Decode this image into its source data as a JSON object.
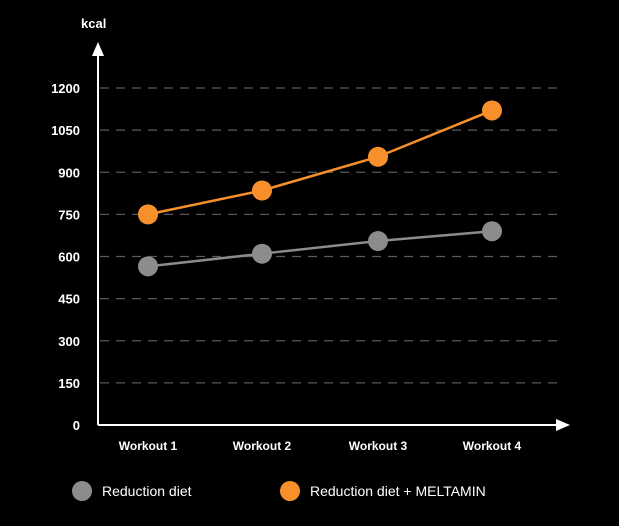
{
  "chart_data": {
    "type": "line",
    "title": "",
    "xlabel": "",
    "ylabel": "kcal",
    "ylim": [
      0,
      1200
    ],
    "yticks": [
      0,
      150,
      300,
      450,
      600,
      750,
      900,
      1050,
      1200
    ],
    "grid": true,
    "categories": [
      "Workout 1",
      "Workout 2",
      "Workout 3",
      "Workout 4"
    ],
    "series": [
      {
        "name": "Reduction diet",
        "color": "#8c8c8c",
        "values": [
          565,
          610,
          655,
          690
        ]
      },
      {
        "name": "Reduction diet + MELTAMIN",
        "color": "#f7902b",
        "values": [
          750,
          835,
          955,
          1120
        ]
      }
    ],
    "legend_position": "bottom"
  }
}
